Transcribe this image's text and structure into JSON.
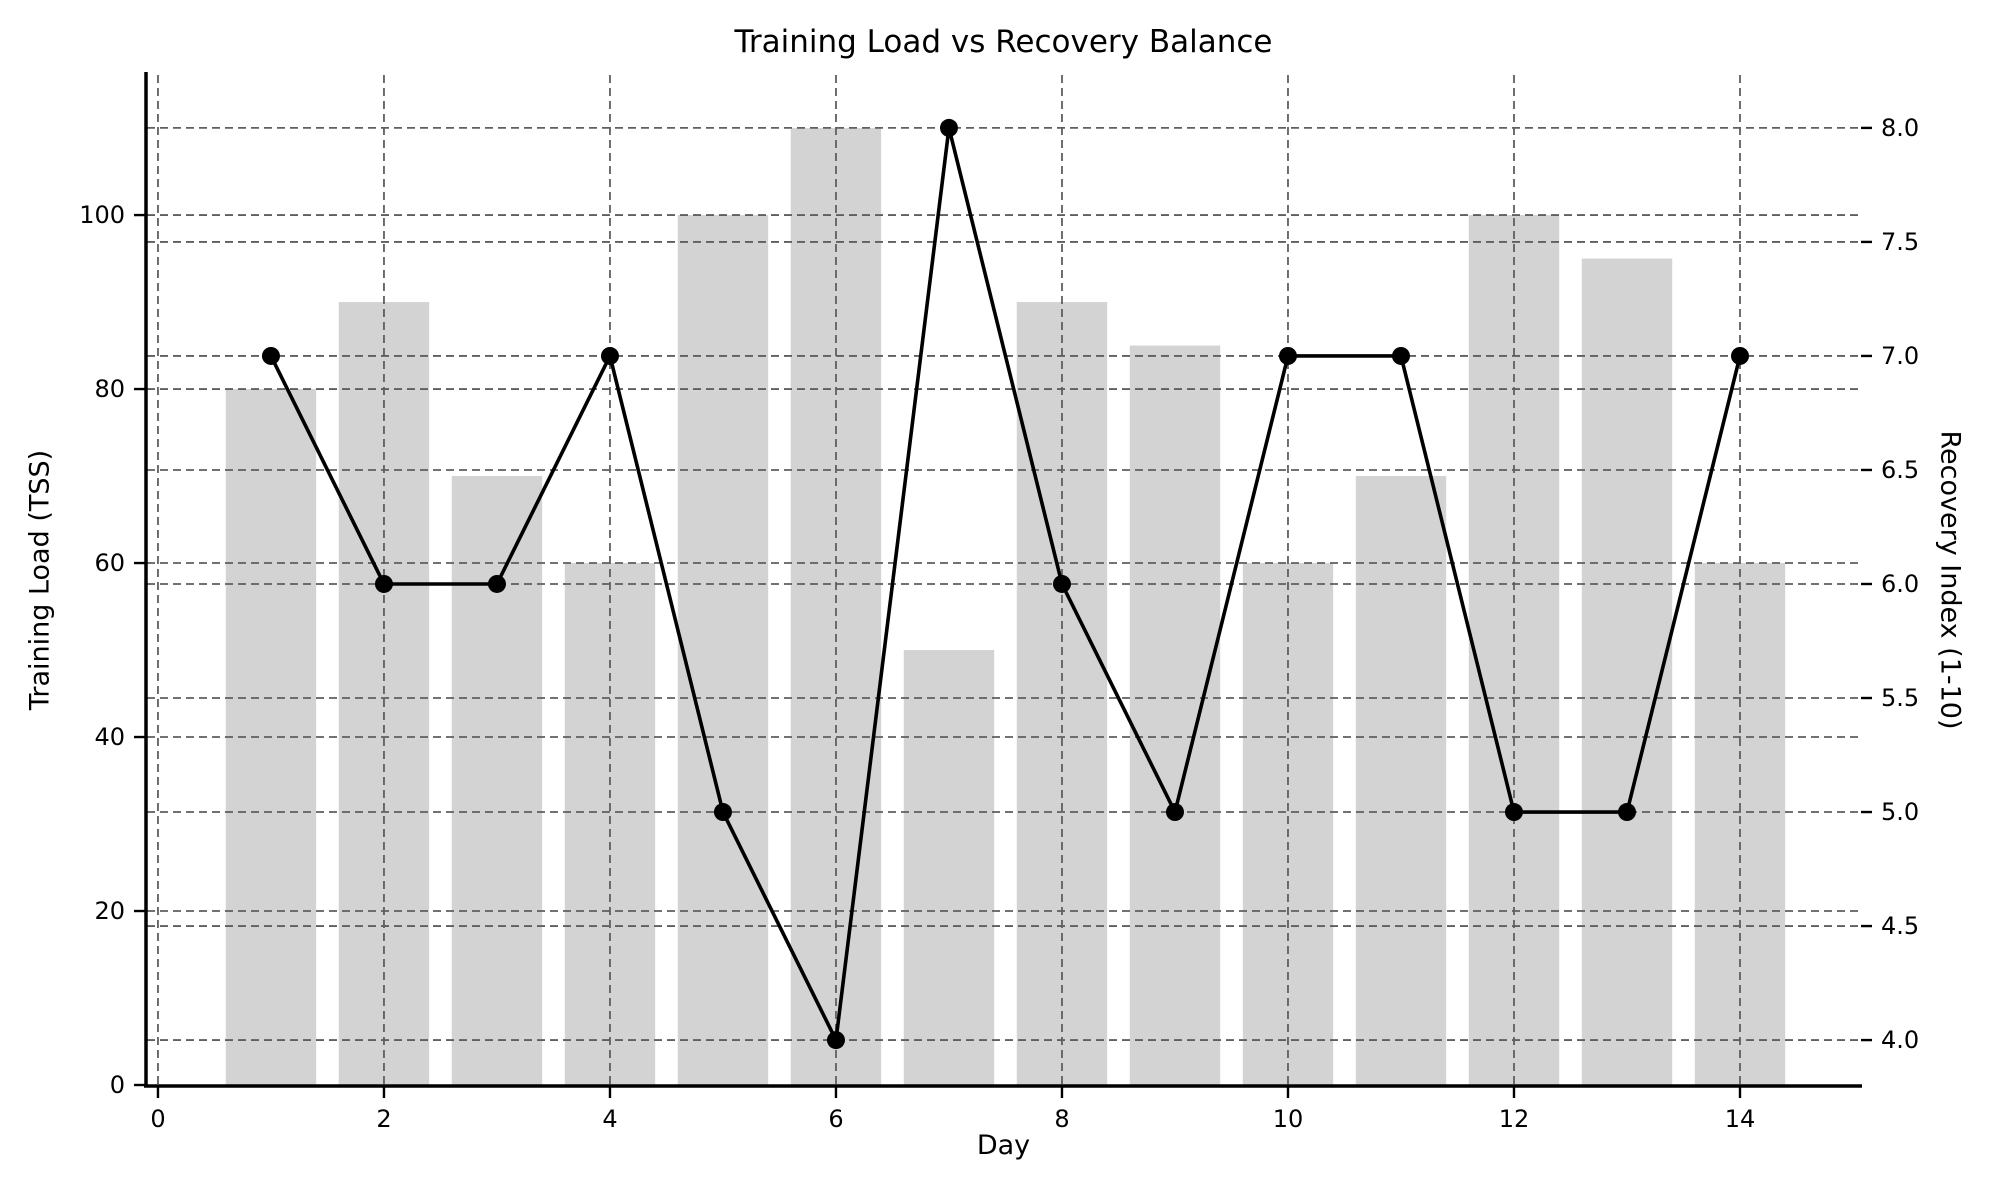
{
  "figure": {
    "title": "Training Load vs Recovery Balance",
    "xlabel": "Day",
    "ylabel_left": "Training Load (TSS)",
    "ylabel_right": "Recovery Index (1-10)"
  },
  "chart_data": {
    "type": "bar+line",
    "title": "Training Load vs Recovery Balance",
    "xlabel": "Day",
    "ylabel_left": "Training Load (TSS)",
    "ylabel_right": "Recovery Index (1-10)",
    "x": [
      1,
      2,
      3,
      4,
      5,
      6,
      7,
      8,
      9,
      10,
      11,
      12,
      13,
      14
    ],
    "series": [
      {
        "name": "Training Load (TSS)",
        "type": "bar",
        "axis": "left",
        "color": "#d3d3d3",
        "values": [
          80,
          90,
          70,
          60,
          100,
          110,
          50,
          90,
          85,
          60,
          70,
          100,
          95,
          60
        ]
      },
      {
        "name": "Recovery Index (1-10)",
        "type": "line",
        "axis": "right",
        "color": "#000000",
        "marker": "circle",
        "values": [
          7.0,
          6.0,
          6.0,
          7.0,
          5.0,
          4.0,
          8.0,
          6.0,
          5.0,
          7.0,
          7.0,
          5.0,
          5.0,
          7.0
        ]
      }
    ],
    "xticks": [
      0,
      2,
      4,
      6,
      8,
      10,
      12,
      14
    ],
    "yticks_left": [
      0,
      20,
      40,
      60,
      80,
      100
    ],
    "yticks_right": [
      4.0,
      4.5,
      5.0,
      5.5,
      6.0,
      6.5,
      7.0,
      7.5,
      8.0
    ],
    "xlim": [
      -0.097,
      15.062
    ],
    "ylim_left": [
      0,
      116.1
    ],
    "ylim_right": [
      3.803,
      8.232
    ],
    "bar_width": 0.8,
    "grid": true,
    "grid_style": "dashed",
    "grid_color": "#5f5f5f",
    "legend_position": "none",
    "background": "#ffffff",
    "text_color": "#000000"
  }
}
